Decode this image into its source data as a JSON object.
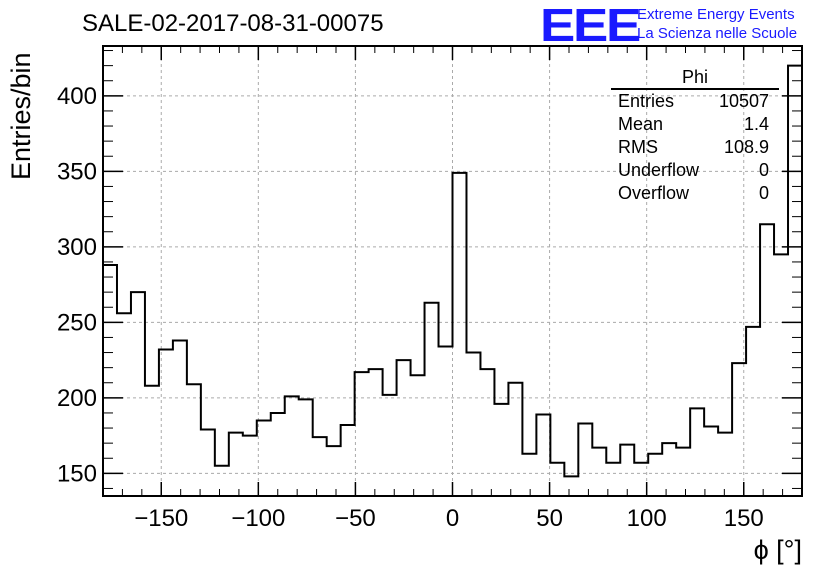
{
  "header": {
    "run_title": "SALE-02-2017-08-31-00075",
    "logo_text": "EEE",
    "logo_line1": "Extreme Energy Events",
    "logo_line2": "La Scienza nelle Scuole",
    "brand_color": "#1a1aff"
  },
  "stats_box": {
    "title": "Phi",
    "rows": [
      {
        "label": "Entries",
        "value": "10507"
      },
      {
        "label": "Mean",
        "value": "1.4"
      },
      {
        "label": "RMS",
        "value": "108.9"
      },
      {
        "label": "Underflow",
        "value": "0"
      },
      {
        "label": "Overflow",
        "value": "0"
      }
    ]
  },
  "chart_data": {
    "type": "bar",
    "style": "step-histogram",
    "xlabel": "ϕ [°]",
    "ylabel": "Entries/bin",
    "xlim": [
      -180,
      180
    ],
    "ylim": [
      135,
      433
    ],
    "x_ticks": [
      -150,
      -100,
      -50,
      0,
      50,
      100,
      150
    ],
    "x_tick_labels": [
      "−150",
      "−100",
      "−50",
      "0",
      "50",
      "100",
      "150"
    ],
    "y_ticks": [
      150,
      200,
      250,
      300,
      350,
      400
    ],
    "y_tick_labels": [
      "150",
      "200",
      "250",
      "300",
      "350",
      "400"
    ],
    "grid": true,
    "bin_edges_start": -180,
    "bin_width": 7.2,
    "values": [
      288,
      256,
      270,
      208,
      232,
      238,
      209,
      179,
      155,
      177,
      175,
      185,
      190,
      201,
      199,
      174,
      168,
      182,
      217,
      219,
      202,
      225,
      215,
      263,
      234,
      349,
      230,
      219,
      196,
      210,
      163,
      189,
      157,
      148,
      183,
      167,
      157,
      169,
      157,
      163,
      170,
      167,
      193,
      181,
      177,
      223,
      247,
      315,
      295,
      420
    ]
  }
}
